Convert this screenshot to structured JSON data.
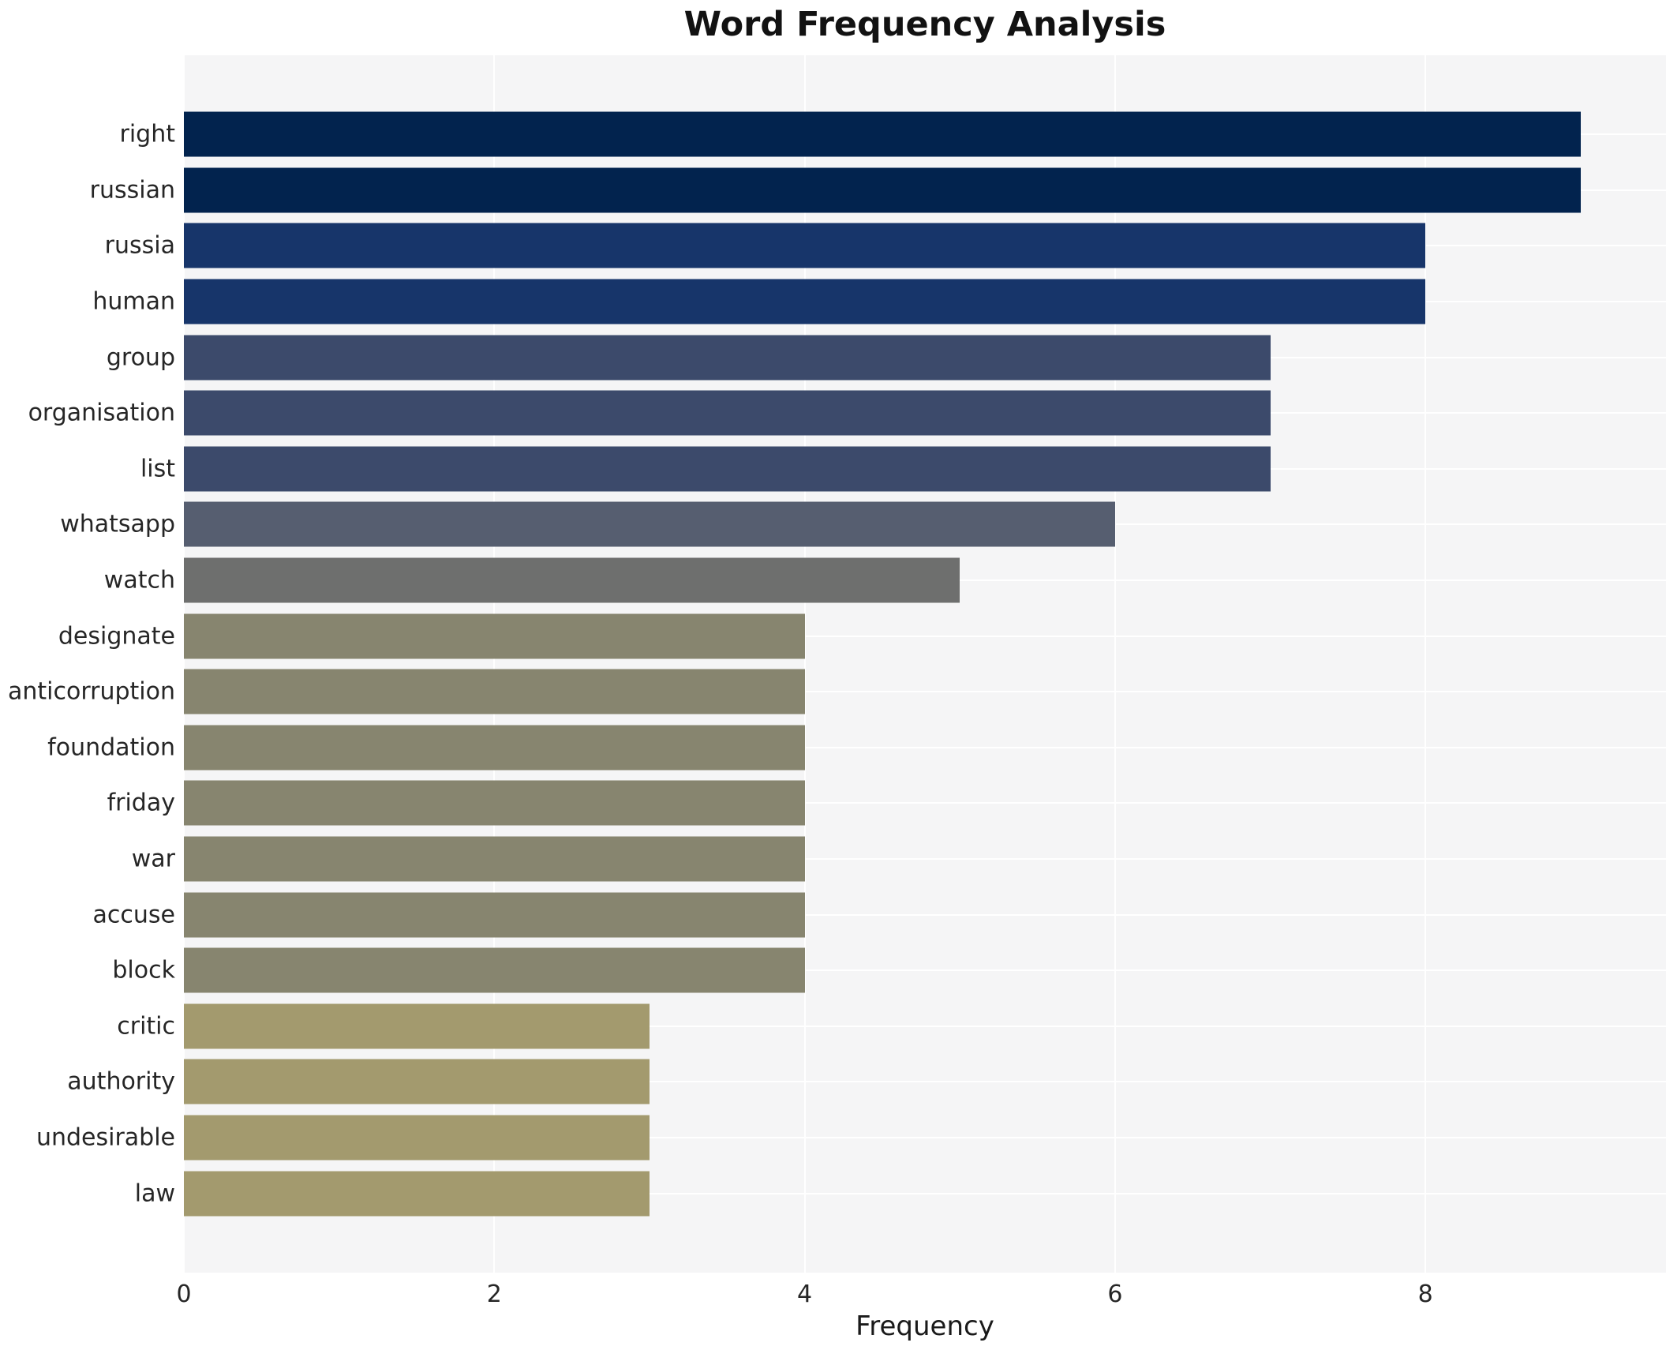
{
  "chart_data": {
    "type": "bar",
    "orientation": "horizontal",
    "title": "Word Frequency Analysis",
    "xlabel": "Frequency",
    "ylabel": "",
    "categories": [
      "right",
      "russian",
      "russia",
      "human",
      "group",
      "organisation",
      "list",
      "whatsapp",
      "watch",
      "designate",
      "anticorruption",
      "foundation",
      "friday",
      "war",
      "accuse",
      "block",
      "critic",
      "authority",
      "undesirable",
      "law"
    ],
    "values": [
      9,
      9,
      8,
      8,
      7,
      7,
      7,
      6,
      5,
      4,
      4,
      4,
      4,
      4,
      4,
      4,
      3,
      3,
      3,
      3
    ],
    "bar_colors": [
      "#02234e",
      "#02234e",
      "#17356a",
      "#17356a",
      "#3c4a6b",
      "#3c4a6b",
      "#3c4a6b",
      "#565e70",
      "#6e6f6e",
      "#87856f",
      "#87856f",
      "#87856f",
      "#87856f",
      "#87856f",
      "#87856f",
      "#87856f",
      "#a39a6e",
      "#a39a6e",
      "#a39a6e",
      "#a39a6e"
    ],
    "xticks": [
      0,
      2,
      4,
      6,
      8
    ],
    "xlim": [
      0,
      9.55
    ],
    "grid": true,
    "legend": false,
    "colors": {
      "figure_background": "#ffffff",
      "plot_background": "#f5f5f6",
      "gridline": "#ffffff",
      "text": "#262626",
      "title_text": "#121212"
    }
  }
}
